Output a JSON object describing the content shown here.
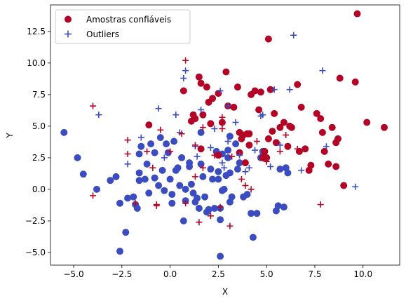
{
  "chart_data": {
    "type": "scatter",
    "title": "",
    "xlabel": "X",
    "ylabel": "Y",
    "xlim": [
      -6.2,
      11.9
    ],
    "ylim": [
      -6.0,
      14.6
    ],
    "xticks": [
      -5.0,
      -2.5,
      0.0,
      2.5,
      5.0,
      7.5,
      10.0
    ],
    "yticks": [
      -5.0,
      -2.5,
      0.0,
      2.5,
      5.0,
      7.5,
      10.0,
      12.5
    ],
    "tick_labels_x": [
      "−5.0",
      "−2.5",
      "0.0",
      "2.5",
      "5.0",
      "7.5",
      "10.0"
    ],
    "tick_labels_y": [
      "−5.0",
      "−2.5",
      "0.0",
      "2.5",
      "5.0",
      "7.5",
      "10.0",
      "12.5"
    ],
    "grid": false,
    "legend_position": "upper-left",
    "colors": {
      "class0": "#3b4cc0",
      "class1": "#b40426"
    },
    "legend": [
      {
        "label": "Amostras confiáveis",
        "marker": "circle",
        "color": "#b40426"
      },
      {
        "label": "Outliers",
        "marker": "plus",
        "color": "#3b4cc0"
      }
    ],
    "series": [
      {
        "marker": "circle",
        "color": "#3b4cc0",
        "points": [
          [
            -5.5,
            4.5
          ],
          [
            -4.8,
            2.5
          ],
          [
            -4.5,
            1.2
          ],
          [
            -3.8,
            0.0
          ],
          [
            -3.1,
            0.7
          ],
          [
            -2.8,
            1.0
          ],
          [
            -2.6,
            -1.1
          ],
          [
            -2.6,
            -4.9
          ],
          [
            -2.3,
            -3.4
          ],
          [
            -2.2,
            -0.7
          ],
          [
            -1.9,
            -0.6
          ],
          [
            -1.8,
            -1.2
          ],
          [
            -1.7,
            -1.5
          ],
          [
            -1.6,
            0.7
          ],
          [
            -1.6,
            1.3
          ],
          [
            -1.5,
            3.4
          ],
          [
            -1.6,
            2.8
          ],
          [
            -1.3,
            0.8
          ],
          [
            -1.2,
            2.0
          ],
          [
            -1.1,
            -0.3
          ],
          [
            -1.0,
            3.6
          ],
          [
            -0.8,
            2.9
          ],
          [
            -0.8,
            0.9
          ],
          [
            -0.6,
            0.3
          ],
          [
            -0.5,
            4.1
          ],
          [
            -0.4,
            1.5
          ],
          [
            -0.3,
            -0.1
          ],
          [
            -0.2,
            3.6
          ],
          [
            -0.1,
            2.9
          ],
          [
            0.0,
            0.8
          ],
          [
            0.1,
            -0.4
          ],
          [
            0.1,
            -1.1
          ],
          [
            0.2,
            3.8
          ],
          [
            0.3,
            1.5
          ],
          [
            0.4,
            1.7
          ],
          [
            0.5,
            0.3
          ],
          [
            0.6,
            2.5
          ],
          [
            0.7,
            -2.5
          ],
          [
            0.8,
            0.0
          ],
          [
            0.8,
            -0.9
          ],
          [
            1.0,
            2.1
          ],
          [
            1.0,
            1.8
          ],
          [
            1.1,
            0.4
          ],
          [
            1.2,
            -0.3
          ],
          [
            1.3,
            -1.0
          ],
          [
            1.4,
            -0.7
          ],
          [
            1.5,
            -1.5
          ],
          [
            1.6,
            4.5
          ],
          [
            1.6,
            2.0
          ],
          [
            1.7,
            1.0
          ],
          [
            1.8,
            -0.6
          ],
          [
            1.9,
            -1.8
          ],
          [
            2.0,
            -1.6
          ],
          [
            2.1,
            1.6
          ],
          [
            2.2,
            0.8
          ],
          [
            2.3,
            -1.5
          ],
          [
            2.4,
            3.0
          ],
          [
            2.5,
            0.8
          ],
          [
            2.5,
            1.4
          ],
          [
            2.6,
            -2.4
          ],
          [
            2.6,
            -1.5
          ],
          [
            2.7,
            2.8
          ],
          [
            2.7,
            -0.1
          ],
          [
            2.8,
            0.0
          ],
          [
            2.9,
            1.1
          ],
          [
            3.0,
            2.5
          ],
          [
            3.0,
            3.1
          ],
          [
            3.1,
            -1.0
          ],
          [
            3.1,
            1.3
          ],
          [
            3.2,
            -0.6
          ],
          [
            3.4,
            3.6
          ],
          [
            3.5,
            1.6
          ],
          [
            3.6,
            2.1
          ],
          [
            3.8,
            -0.6
          ],
          [
            4.0,
            -0.4
          ],
          [
            4.2,
            -1.9
          ],
          [
            4.3,
            -3.8
          ],
          [
            4.5,
            -1.9
          ],
          [
            4.7,
            2.5
          ],
          [
            4.8,
            3.0
          ],
          [
            5.5,
            -1.7
          ],
          [
            5.6,
            -1.3
          ],
          [
            5.7,
            1.6
          ],
          [
            5.9,
            -1.4
          ],
          [
            6.0,
            1.7
          ],
          [
            6.1,
            1.3
          ],
          [
            2.6,
            -5.3
          ],
          [
            3.1,
            4.2
          ]
        ]
      },
      {
        "marker": "circle",
        "color": "#b40426",
        "points": [
          [
            -1.1,
            5.1
          ],
          [
            0.7,
            7.8
          ],
          [
            1.1,
            5.4
          ],
          [
            1.2,
            5.9
          ],
          [
            1.3,
            5.6
          ],
          [
            1.5,
            8.9
          ],
          [
            1.6,
            8.4
          ],
          [
            1.7,
            5.9
          ],
          [
            1.9,
            8.1
          ],
          [
            2.0,
            6.9
          ],
          [
            2.1,
            5.2
          ],
          [
            2.2,
            7.2
          ],
          [
            2.5,
            7.6
          ],
          [
            2.7,
            5.3
          ],
          [
            2.9,
            9.3
          ],
          [
            3.0,
            6.6
          ],
          [
            3.3,
            6.5
          ],
          [
            3.5,
            8.1
          ],
          [
            3.6,
            4.5
          ],
          [
            3.7,
            4.0
          ],
          [
            3.8,
            4.3
          ],
          [
            3.9,
            2.1
          ],
          [
            4.0,
            4.4
          ],
          [
            4.1,
            3.5
          ],
          [
            4.2,
            7.5
          ],
          [
            4.4,
            7.8
          ],
          [
            4.6,
            6.3
          ],
          [
            4.7,
            7.7
          ],
          [
            4.8,
            2.5
          ],
          [
            4.9,
            3.0
          ],
          [
            5.1,
            4.0
          ],
          [
            5.1,
            11.9
          ],
          [
            5.2,
            7.9
          ],
          [
            5.3,
            4.6
          ],
          [
            5.4,
            6.0
          ],
          [
            5.5,
            3.7
          ],
          [
            5.7,
            4.9
          ],
          [
            5.9,
            5.3
          ],
          [
            6.1,
            3.4
          ],
          [
            6.2,
            5.0
          ],
          [
            6.3,
            4.9
          ],
          [
            6.6,
            8.3
          ],
          [
            6.8,
            6.5
          ],
          [
            7.2,
            1.5
          ],
          [
            7.3,
            1.9
          ],
          [
            7.6,
            6.0
          ],
          [
            7.8,
            5.6
          ],
          [
            7.9,
            4.5
          ],
          [
            8.0,
            3.0
          ],
          [
            8.2,
            2.0
          ],
          [
            8.4,
            4.9
          ],
          [
            8.6,
            1.8
          ],
          [
            8.8,
            8.8
          ],
          [
            9.0,
            0.3
          ],
          [
            9.6,
            8.5
          ],
          [
            9.7,
            13.9
          ],
          [
            10.2,
            5.3
          ],
          [
            11.1,
            4.9
          ],
          [
            8.6,
            3.7
          ],
          [
            8.7,
            4.0
          ],
          [
            7.0,
            3.2
          ],
          [
            6.7,
            3.0
          ],
          [
            5.0,
            2.5
          ],
          [
            4.1,
            4.4
          ],
          [
            3.6,
            2.9
          ],
          [
            2.5,
            2.7
          ],
          [
            1.6,
            3.2
          ]
        ]
      },
      {
        "marker": "plus",
        "color": "#3b4cc0",
        "points": [
          [
            -3.7,
            5.9
          ],
          [
            -2.2,
            2.0
          ],
          [
            -1.5,
            4.1
          ],
          [
            -0.6,
            6.4
          ],
          [
            0.3,
            5.9
          ],
          [
            0.5,
            4.5
          ],
          [
            0.7,
            8.8
          ],
          [
            0.8,
            9.4
          ],
          [
            1.4,
            2.6
          ],
          [
            1.6,
            6.3
          ],
          [
            2.1,
            3.3
          ],
          [
            2.3,
            4.8
          ],
          [
            2.6,
            7.8
          ],
          [
            2.7,
            2.1
          ],
          [
            3.0,
            6.6
          ],
          [
            3.0,
            3.8
          ],
          [
            3.4,
            5.3
          ],
          [
            3.6,
            2.7
          ],
          [
            3.9,
            1.4
          ],
          [
            4.1,
            1.7
          ],
          [
            4.7,
            5.8
          ],
          [
            4.8,
            5.9
          ],
          [
            5.2,
            1.8
          ],
          [
            5.4,
            7.9
          ],
          [
            5.7,
            3.5
          ],
          [
            6.2,
            7.9
          ],
          [
            6.4,
            12.2
          ],
          [
            6.8,
            1.5
          ],
          [
            7.9,
            9.4
          ],
          [
            8.1,
            3.4
          ],
          [
            9.6,
            0.2
          ],
          [
            4.4,
            3.1
          ],
          [
            1.3,
            3.4
          ],
          [
            -0.3,
            2.5
          ],
          [
            2.8,
            1.7
          ]
        ]
      },
      {
        "marker": "plus",
        "color": "#b40426",
        "points": [
          [
            -4.0,
            6.6
          ],
          [
            -4.0,
            -0.5
          ],
          [
            -2.2,
            2.8
          ],
          [
            -2.2,
            3.9
          ],
          [
            -1.8,
            -1.1
          ],
          [
            -1.2,
            3.0
          ],
          [
            -0.9,
            1.7
          ],
          [
            -0.7,
            -1.3
          ],
          [
            -0.5,
            4.7
          ],
          [
            0.0,
            3.0
          ],
          [
            0.6,
            4.4
          ],
          [
            0.8,
            10.2
          ],
          [
            0.8,
            -1.1
          ],
          [
            1.3,
            1.0
          ],
          [
            1.3,
            3.5
          ],
          [
            1.5,
            -2.6
          ],
          [
            1.7,
            4.9
          ],
          [
            2.1,
            -2.1
          ],
          [
            2.3,
            2.7
          ],
          [
            2.6,
            -1.4
          ],
          [
            2.7,
            5.7
          ],
          [
            2.7,
            4.8
          ],
          [
            3.1,
            -2.9
          ],
          [
            3.2,
            2.6
          ],
          [
            3.7,
            0.8
          ],
          [
            3.9,
            0.3
          ],
          [
            4.2,
            0.0
          ],
          [
            4.5,
            3.8
          ],
          [
            5.0,
            2.2
          ],
          [
            5.7,
            3.0
          ],
          [
            6.0,
            4.3
          ],
          [
            7.8,
            -1.2
          ],
          [
            6.6,
            3.2
          ],
          [
            1.7,
            1.7
          ],
          [
            -0.7,
            -1.2
          ]
        ]
      }
    ]
  }
}
